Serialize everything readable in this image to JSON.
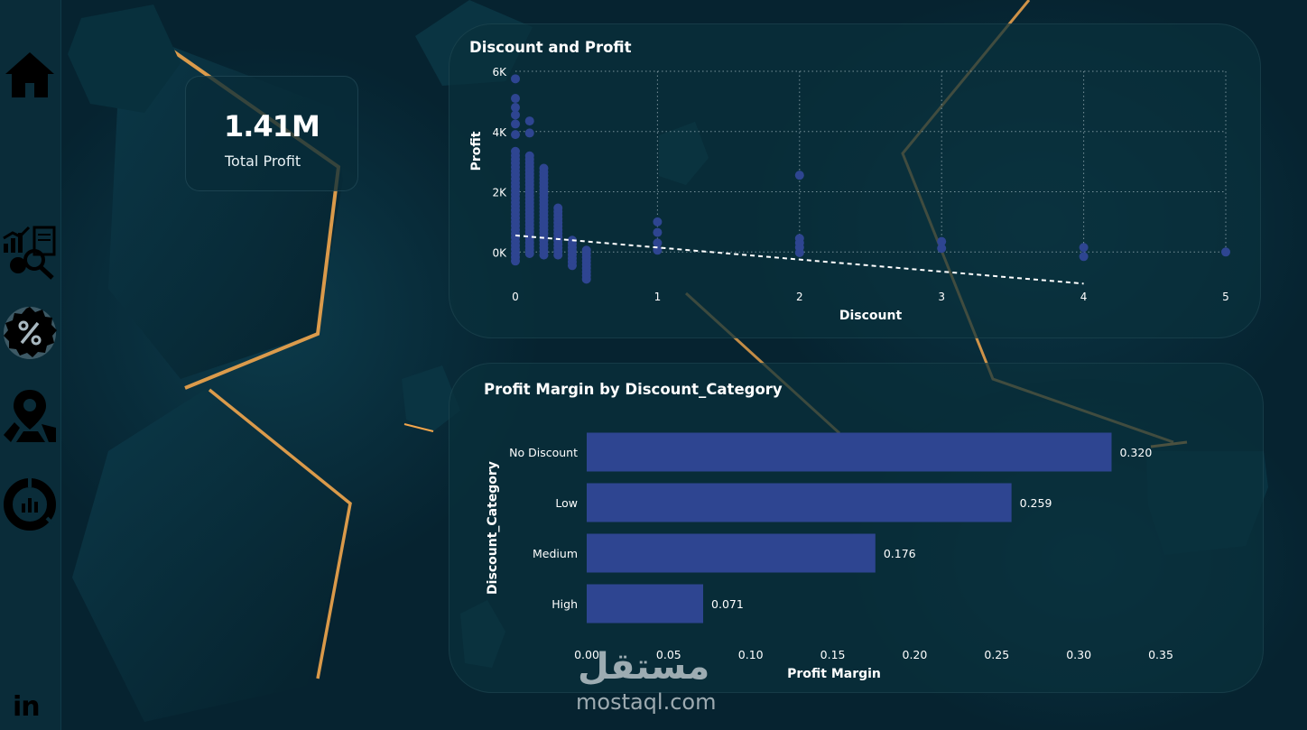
{
  "sidebar": {
    "items": [
      {
        "name": "home",
        "icon": "home-icon"
      },
      {
        "name": "analysis",
        "icon": "analytics-icon"
      },
      {
        "name": "discount",
        "icon": "discount-badge-icon",
        "active": true
      },
      {
        "name": "map",
        "icon": "location-map-icon"
      },
      {
        "name": "donut",
        "icon": "donut-chart-icon"
      }
    ],
    "linkedin_label": "in"
  },
  "kpi": {
    "value": "1.41M",
    "label": "Total Profit"
  },
  "scatter_card": {
    "title": "Discount and Profit"
  },
  "bar_card": {
    "title": "Profit Margin by Discount_Category"
  },
  "watermark": {
    "arabic": "مستقل",
    "latin": "mostaql.com"
  },
  "colors": {
    "background": "#062330",
    "card": "#0a303c",
    "marker": "#2e4591",
    "bar": "#2e4591",
    "accent_gold": "#f2a64c",
    "sidebar": "#0a2c39"
  },
  "chart_data": [
    {
      "type": "scatter",
      "title": "Discount and Profit",
      "xlabel": "Discount",
      "ylabel": "Profit",
      "xlim": [
        0,
        5
      ],
      "ylim": [
        -1100,
        6000
      ],
      "xticks": [
        0,
        1,
        2,
        3,
        4,
        5
      ],
      "yticks": [
        0,
        2000,
        4000,
        6000
      ],
      "ytick_labels": [
        "0K",
        "2K",
        "4K",
        "6K"
      ],
      "grid": true,
      "trendline": {
        "x": [
          0,
          4
        ],
        "y": [
          550,
          -1050
        ]
      },
      "points": [
        {
          "x": 0,
          "y_range": [
            -300,
            3400
          ],
          "step": 130
        },
        {
          "x": 0,
          "y_values": [
            3900,
            4250,
            4550,
            4800,
            5100,
            5750
          ]
        },
        {
          "x": 0.1,
          "y_range": [
            -50,
            3300
          ],
          "step": 120
        },
        {
          "x": 0.1,
          "y_values": [
            3950,
            4350
          ]
        },
        {
          "x": 0.2,
          "y_range": [
            -100,
            2800
          ],
          "step": 120
        },
        {
          "x": 0.3,
          "y_range": [
            -100,
            1550
          ],
          "step": 120
        },
        {
          "x": 0.4,
          "y_range": [
            -450,
            400
          ],
          "step": 120
        },
        {
          "x": 0.5,
          "y_range": [
            -900,
            130
          ],
          "step": 120
        },
        {
          "x": 1.0,
          "y_values": [
            60,
            300,
            650,
            1000
          ]
        },
        {
          "x": 2.0,
          "y_values": [
            -20,
            150,
            300,
            450,
            2550
          ]
        },
        {
          "x": 3.0,
          "y_values": [
            120,
            350
          ]
        },
        {
          "x": 4.0,
          "y_values": [
            -150,
            150
          ]
        },
        {
          "x": 5.0,
          "y_values": [
            0
          ]
        }
      ]
    },
    {
      "type": "bar",
      "orientation": "horizontal",
      "title": "Profit Margin by Discount_Category",
      "xlabel": "Profit Margin",
      "ylabel": "Discount_Category",
      "categories": [
        "No Discount",
        "Low",
        "Medium",
        "High"
      ],
      "values": [
        0.32,
        0.259,
        0.176,
        0.071
      ],
      "data_labels": [
        "0.320",
        "0.259",
        "0.176",
        "0.071"
      ],
      "xlim": [
        0,
        0.35
      ],
      "xticks": [
        0,
        0.05,
        0.1,
        0.15,
        0.2,
        0.25,
        0.3,
        0.35
      ],
      "xtick_labels": [
        "0.00",
        "0.05",
        "0.10",
        "0.15",
        "0.20",
        "0.25",
        "0.30",
        "0.35"
      ]
    }
  ]
}
